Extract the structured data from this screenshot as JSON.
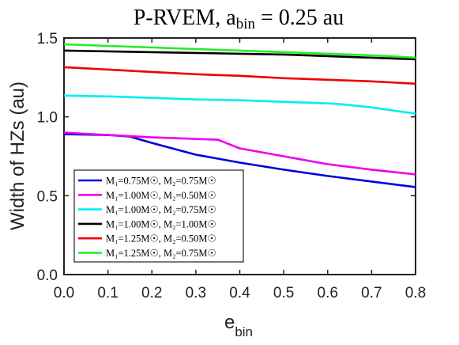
{
  "chart_data": {
    "type": "line",
    "title": {
      "main": "P-RVEM, a",
      "subscript": "bin",
      "rest": " = 0.25 au"
    },
    "xlabel": {
      "main": "e",
      "subscript": "bin"
    },
    "ylabel": "Width of HZs (au)",
    "xlim": [
      0,
      0.8
    ],
    "ylim": [
      0,
      1.5
    ],
    "xticks": [
      "0.0",
      "0.1",
      "0.2",
      "0.3",
      "0.4",
      "0.5",
      "0.6",
      "0.7",
      "0.8"
    ],
    "yticks": [
      "0.0",
      "0.5",
      "1.0",
      "1.5"
    ],
    "grid": false,
    "legend_position": "bottom-left",
    "series": [
      {
        "label": "M₁=0.75M☉, M₂=0.75M☉",
        "color": "#0000dd",
        "x": [
          0,
          0.1,
          0.15,
          0.2,
          0.3,
          0.4,
          0.5,
          0.6,
          0.7,
          0.8
        ],
        "y": [
          0.89,
          0.885,
          0.875,
          0.835,
          0.76,
          0.71,
          0.665,
          0.625,
          0.59,
          0.555
        ]
      },
      {
        "label": "M₁=1.00M☉, M₂=0.50M☉",
        "color": "#ee00ee",
        "x": [
          0,
          0.1,
          0.2,
          0.3,
          0.35,
          0.4,
          0.5,
          0.6,
          0.7,
          0.8
        ],
        "y": [
          0.9,
          0.885,
          0.87,
          0.86,
          0.855,
          0.8,
          0.75,
          0.7,
          0.665,
          0.635
        ]
      },
      {
        "label": "M₁=1.00M☉, M₂=0.75M☉",
        "color": "#00eeee",
        "x": [
          0,
          0.1,
          0.2,
          0.3,
          0.4,
          0.5,
          0.6,
          0.63,
          0.7,
          0.8
        ],
        "y": [
          1.135,
          1.13,
          1.12,
          1.11,
          1.105,
          1.095,
          1.085,
          1.08,
          1.06,
          1.02
        ]
      },
      {
        "label": "M₁=1.00M☉, M₂=1.00M☉",
        "color": "#000000",
        "x": [
          0,
          0.1,
          0.2,
          0.3,
          0.4,
          0.5,
          0.6,
          0.7,
          0.8
        ],
        "y": [
          1.42,
          1.415,
          1.41,
          1.405,
          1.4,
          1.395,
          1.385,
          1.375,
          1.365
        ]
      },
      {
        "label": "M₁=1.25M☉, M₂=0.50M☉",
        "color": "#ee0000",
        "x": [
          0,
          0.1,
          0.2,
          0.3,
          0.4,
          0.5,
          0.6,
          0.7,
          0.8
        ],
        "y": [
          1.315,
          1.3,
          1.285,
          1.27,
          1.26,
          1.245,
          1.235,
          1.225,
          1.21
        ]
      },
      {
        "label": "M₁=1.25M☉, M₂=0.75M☉",
        "color": "#22ee22",
        "x": [
          0,
          0.1,
          0.2,
          0.3,
          0.4,
          0.5,
          0.6,
          0.7,
          0.8
        ],
        "y": [
          1.46,
          1.45,
          1.44,
          1.43,
          1.42,
          1.41,
          1.4,
          1.39,
          1.375
        ]
      }
    ]
  }
}
